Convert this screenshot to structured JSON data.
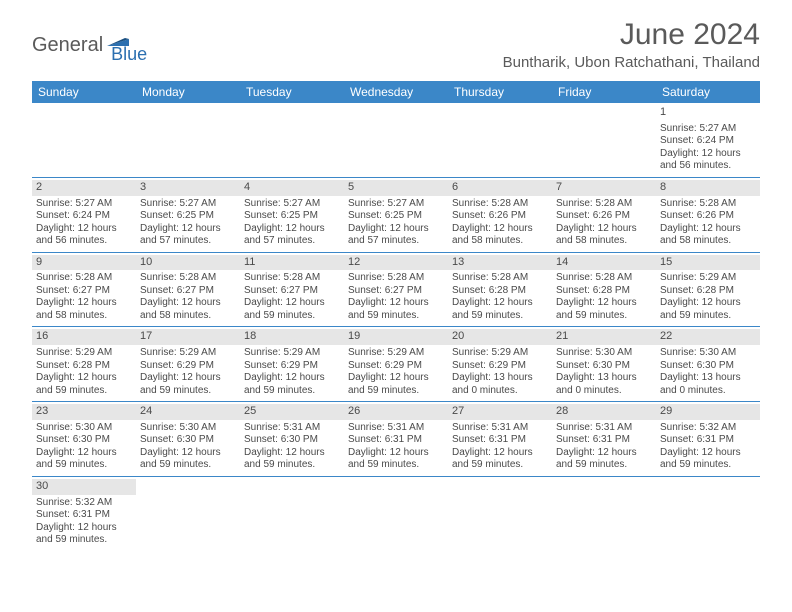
{
  "brand": {
    "part1": "General",
    "part2": "Blue"
  },
  "title": "June 2024",
  "location": "Buntharik, Ubon Ratchathani, Thailand",
  "colors": {
    "header_bg": "#3b87c8",
    "header_text": "#ffffff",
    "daynum_bg": "#e6e6e6",
    "text": "#4a4a4a",
    "border": "#3b87c8",
    "brand_gray": "#5a5a5a",
    "brand_blue": "#2b6fb0"
  },
  "day_labels": [
    "Sunday",
    "Monday",
    "Tuesday",
    "Wednesday",
    "Thursday",
    "Friday",
    "Saturday"
  ],
  "weeks": [
    [
      null,
      null,
      null,
      null,
      null,
      null,
      {
        "n": "1",
        "sr": "Sunrise: 5:27 AM",
        "ss": "Sunset: 6:24 PM",
        "dl": "Daylight: 12 hours and 56 minutes."
      }
    ],
    [
      {
        "n": "2",
        "sr": "Sunrise: 5:27 AM",
        "ss": "Sunset: 6:24 PM",
        "dl": "Daylight: 12 hours and 56 minutes."
      },
      {
        "n": "3",
        "sr": "Sunrise: 5:27 AM",
        "ss": "Sunset: 6:25 PM",
        "dl": "Daylight: 12 hours and 57 minutes."
      },
      {
        "n": "4",
        "sr": "Sunrise: 5:27 AM",
        "ss": "Sunset: 6:25 PM",
        "dl": "Daylight: 12 hours and 57 minutes."
      },
      {
        "n": "5",
        "sr": "Sunrise: 5:27 AM",
        "ss": "Sunset: 6:25 PM",
        "dl": "Daylight: 12 hours and 57 minutes."
      },
      {
        "n": "6",
        "sr": "Sunrise: 5:28 AM",
        "ss": "Sunset: 6:26 PM",
        "dl": "Daylight: 12 hours and 58 minutes."
      },
      {
        "n": "7",
        "sr": "Sunrise: 5:28 AM",
        "ss": "Sunset: 6:26 PM",
        "dl": "Daylight: 12 hours and 58 minutes."
      },
      {
        "n": "8",
        "sr": "Sunrise: 5:28 AM",
        "ss": "Sunset: 6:26 PM",
        "dl": "Daylight: 12 hours and 58 minutes."
      }
    ],
    [
      {
        "n": "9",
        "sr": "Sunrise: 5:28 AM",
        "ss": "Sunset: 6:27 PM",
        "dl": "Daylight: 12 hours and 58 minutes."
      },
      {
        "n": "10",
        "sr": "Sunrise: 5:28 AM",
        "ss": "Sunset: 6:27 PM",
        "dl": "Daylight: 12 hours and 58 minutes."
      },
      {
        "n": "11",
        "sr": "Sunrise: 5:28 AM",
        "ss": "Sunset: 6:27 PM",
        "dl": "Daylight: 12 hours and 59 minutes."
      },
      {
        "n": "12",
        "sr": "Sunrise: 5:28 AM",
        "ss": "Sunset: 6:27 PM",
        "dl": "Daylight: 12 hours and 59 minutes."
      },
      {
        "n": "13",
        "sr": "Sunrise: 5:28 AM",
        "ss": "Sunset: 6:28 PM",
        "dl": "Daylight: 12 hours and 59 minutes."
      },
      {
        "n": "14",
        "sr": "Sunrise: 5:28 AM",
        "ss": "Sunset: 6:28 PM",
        "dl": "Daylight: 12 hours and 59 minutes."
      },
      {
        "n": "15",
        "sr": "Sunrise: 5:29 AM",
        "ss": "Sunset: 6:28 PM",
        "dl": "Daylight: 12 hours and 59 minutes."
      }
    ],
    [
      {
        "n": "16",
        "sr": "Sunrise: 5:29 AM",
        "ss": "Sunset: 6:28 PM",
        "dl": "Daylight: 12 hours and 59 minutes."
      },
      {
        "n": "17",
        "sr": "Sunrise: 5:29 AM",
        "ss": "Sunset: 6:29 PM",
        "dl": "Daylight: 12 hours and 59 minutes."
      },
      {
        "n": "18",
        "sr": "Sunrise: 5:29 AM",
        "ss": "Sunset: 6:29 PM",
        "dl": "Daylight: 12 hours and 59 minutes."
      },
      {
        "n": "19",
        "sr": "Sunrise: 5:29 AM",
        "ss": "Sunset: 6:29 PM",
        "dl": "Daylight: 12 hours and 59 minutes."
      },
      {
        "n": "20",
        "sr": "Sunrise: 5:29 AM",
        "ss": "Sunset: 6:29 PM",
        "dl": "Daylight: 13 hours and 0 minutes."
      },
      {
        "n": "21",
        "sr": "Sunrise: 5:30 AM",
        "ss": "Sunset: 6:30 PM",
        "dl": "Daylight: 13 hours and 0 minutes."
      },
      {
        "n": "22",
        "sr": "Sunrise: 5:30 AM",
        "ss": "Sunset: 6:30 PM",
        "dl": "Daylight: 13 hours and 0 minutes."
      }
    ],
    [
      {
        "n": "23",
        "sr": "Sunrise: 5:30 AM",
        "ss": "Sunset: 6:30 PM",
        "dl": "Daylight: 12 hours and 59 minutes."
      },
      {
        "n": "24",
        "sr": "Sunrise: 5:30 AM",
        "ss": "Sunset: 6:30 PM",
        "dl": "Daylight: 12 hours and 59 minutes."
      },
      {
        "n": "25",
        "sr": "Sunrise: 5:31 AM",
        "ss": "Sunset: 6:30 PM",
        "dl": "Daylight: 12 hours and 59 minutes."
      },
      {
        "n": "26",
        "sr": "Sunrise: 5:31 AM",
        "ss": "Sunset: 6:31 PM",
        "dl": "Daylight: 12 hours and 59 minutes."
      },
      {
        "n": "27",
        "sr": "Sunrise: 5:31 AM",
        "ss": "Sunset: 6:31 PM",
        "dl": "Daylight: 12 hours and 59 minutes."
      },
      {
        "n": "28",
        "sr": "Sunrise: 5:31 AM",
        "ss": "Sunset: 6:31 PM",
        "dl": "Daylight: 12 hours and 59 minutes."
      },
      {
        "n": "29",
        "sr": "Sunrise: 5:32 AM",
        "ss": "Sunset: 6:31 PM",
        "dl": "Daylight: 12 hours and 59 minutes."
      }
    ],
    [
      {
        "n": "30",
        "sr": "Sunrise: 5:32 AM",
        "ss": "Sunset: 6:31 PM",
        "dl": "Daylight: 12 hours and 59 minutes."
      },
      null,
      null,
      null,
      null,
      null,
      null
    ]
  ]
}
